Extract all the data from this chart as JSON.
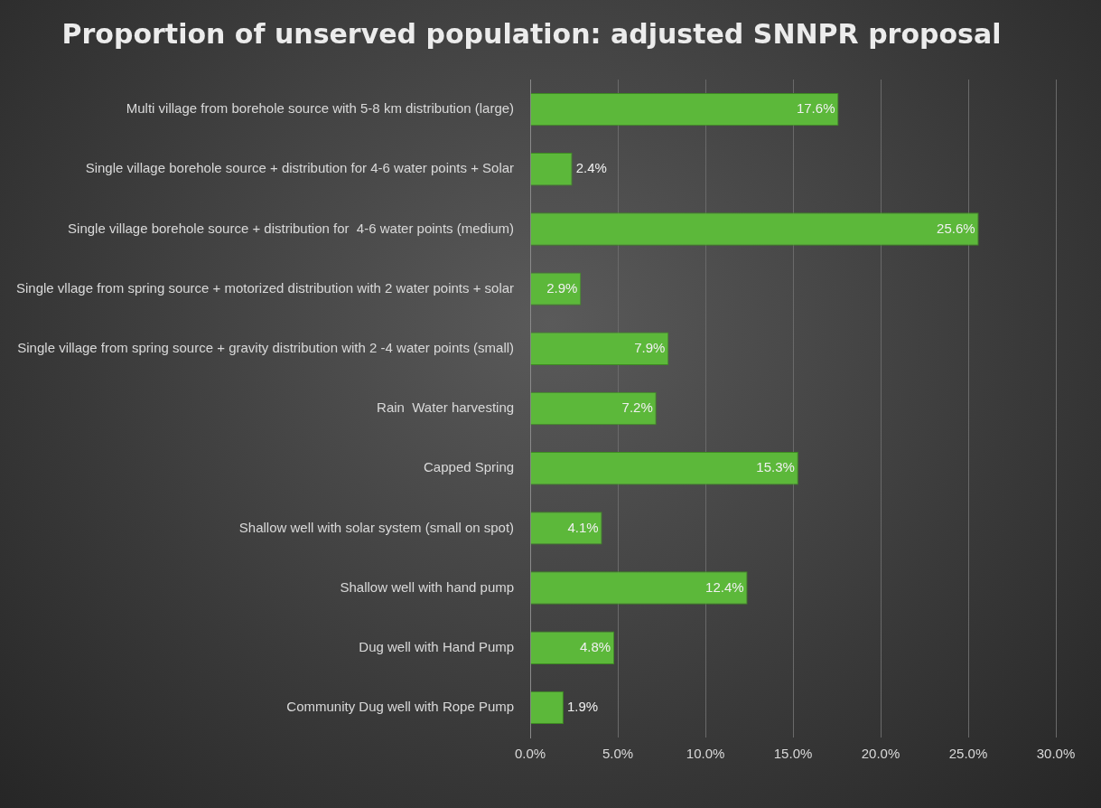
{
  "chart_data": {
    "type": "bar",
    "orientation": "horizontal",
    "title": "Proportion of unserved population: adjusted SNNPR proposal",
    "categories": [
      "Multi village from borehole source with 5-8 km distribution (large)",
      "Single village borehole source + distribution for 4-6 water points + Solar",
      "Single village borehole source + distribution for  4-6 water points (medium)",
      "Single vllage from spring source + motorized distribution with 2 water points + solar",
      "Single village from spring source + gravity distribution with 2 -4 water points (small)",
      "Rain  Water harvesting",
      "Capped Spring",
      "Shallow well with solar system (small on spot)",
      "Shallow well with hand pump",
      "Dug well with Hand Pump",
      "Community Dug well with Rope Pump"
    ],
    "values": [
      17.6,
      2.4,
      25.6,
      2.9,
      7.9,
      7.2,
      15.3,
      4.1,
      12.4,
      4.8,
      1.9
    ],
    "value_labels": [
      "17.6%",
      "2.4%",
      "25.6%",
      "2.9%",
      "7.9%",
      "7.2%",
      "15.3%",
      "4.1%",
      "12.4%",
      "4.8%",
      "1.9%"
    ],
    "color": "#5cb83a",
    "xlim": [
      0,
      30
    ],
    "xticks": [
      {
        "value": 0,
        "label": "0.0%"
      },
      {
        "value": 5,
        "label": "5.0%"
      },
      {
        "value": 10,
        "label": "10.0%"
      },
      {
        "value": 15,
        "label": "15.0%"
      },
      {
        "value": 20,
        "label": "20.0%"
      },
      {
        "value": 25,
        "label": "25.0%"
      },
      {
        "value": 30,
        "label": "30.0%"
      }
    ],
    "grid": "x",
    "legend": false
  }
}
